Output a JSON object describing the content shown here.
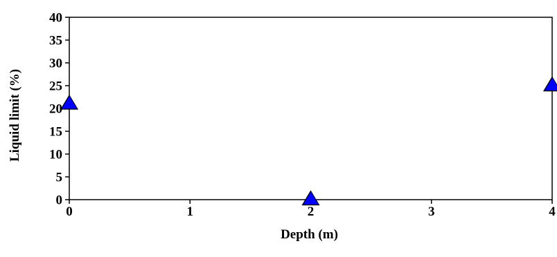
{
  "chart_data": {
    "type": "scatter",
    "title": "",
    "xlabel": "Depth (m)",
    "ylabel": "Liquid limit (%)",
    "xlim": [
      0,
      4
    ],
    "ylim": [
      0,
      40
    ],
    "xticks": [
      0,
      1,
      2,
      3,
      4
    ],
    "yticks": [
      0,
      5,
      10,
      15,
      20,
      25,
      30,
      35,
      40
    ],
    "grid": false,
    "legend": "none",
    "series": [
      {
        "marker": "triangle",
        "color": "#0000ff",
        "points": [
          {
            "x": 0,
            "y": 21
          },
          {
            "x": 2,
            "y": 0
          },
          {
            "x": 4,
            "y": 25
          }
        ]
      }
    ]
  }
}
